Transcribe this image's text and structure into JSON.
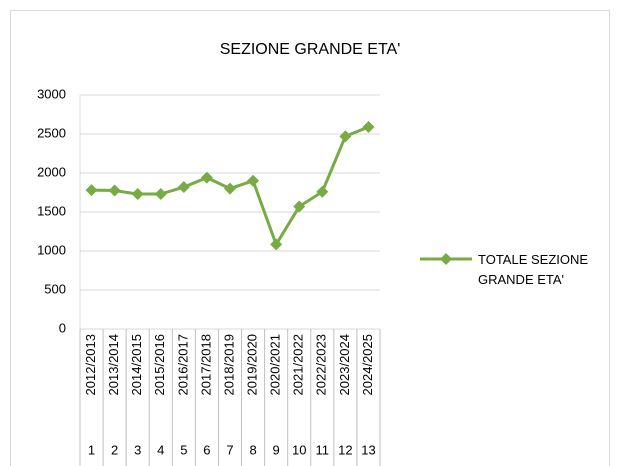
{
  "chart_data": {
    "type": "line",
    "title": "SEZIONE GRANDE ETA'",
    "categories": [
      "2012/2013",
      "2013/2014",
      "2014/2015",
      "2015/2016",
      "2016/2017",
      "2017/2018",
      "2018/2019",
      "2019/2020",
      "2020/2021",
      "2021/2022",
      "2022/2023",
      "2023/2024",
      "2024/2025"
    ],
    "category_index": [
      "1",
      "2",
      "3",
      "4",
      "5",
      "6",
      "7",
      "8",
      "9",
      "10",
      "11",
      "12",
      "13"
    ],
    "series": [
      {
        "name": "TOTALE SEZIONE GRANDE ETA'",
        "color": "#77ab43",
        "values": [
          1780,
          1775,
          1730,
          1730,
          1820,
          1940,
          1800,
          1900,
          1085,
          1570,
          1760,
          2470,
          2590
        ]
      }
    ],
    "ylim": [
      0,
      3000
    ],
    "yticks": [
      0,
      500,
      1000,
      1500,
      2000,
      2500,
      3000
    ],
    "grid": true,
    "legend": "right"
  }
}
